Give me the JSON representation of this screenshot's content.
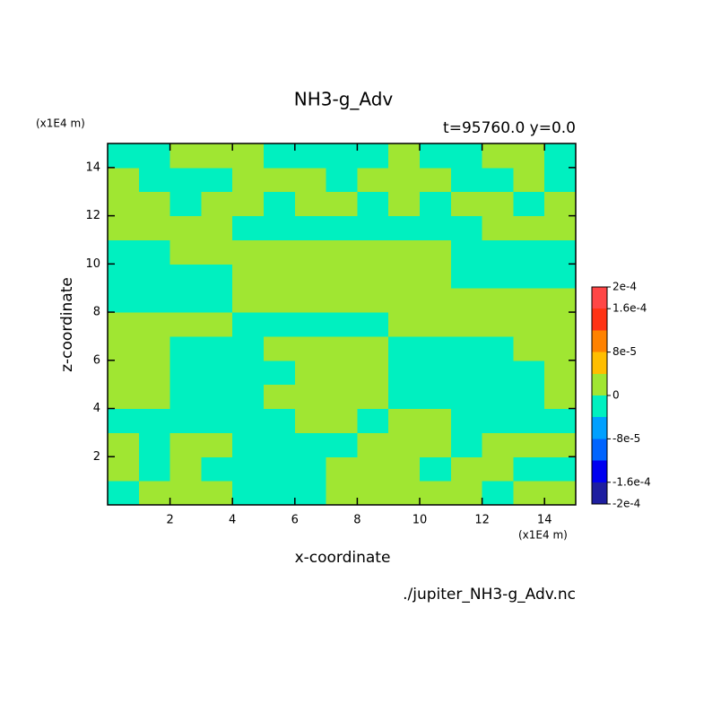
{
  "chart_data": {
    "type": "contour",
    "title": "NH3-g_Adv",
    "subtitle": "t=95760.0 y=0.0",
    "xlabel": "x-coordinate",
    "ylabel": "z-coordinate",
    "xunit": "(x1E4 m)",
    "yunit": "(x1E4 m)",
    "footer": "./jupiter_NH3-g_Adv.nc",
    "xlim": [
      0,
      15
    ],
    "ylim": [
      0,
      15
    ],
    "xticks": [
      2,
      4,
      6,
      8,
      10,
      12,
      14
    ],
    "yticks": [
      2,
      4,
      6,
      8,
      10,
      12,
      14
    ],
    "x": [
      0.5,
      1.5,
      2.5,
      3.5,
      4.5,
      5.5,
      6.5,
      7.5,
      8.5,
      9.5,
      10.5,
      11.5,
      12.5,
      13.5,
      14.5
    ],
    "y": [
      0.5,
      1.5,
      2.5,
      3.5,
      4.5,
      5.5,
      6.5,
      7.5,
      8.5,
      9.5,
      10.5,
      11.5,
      12.5,
      13.5,
      14.5
    ],
    "z": [
      [
        -2e-05,
        2e-05,
        2e-05,
        2e-05,
        -2e-05,
        -2e-05,
        -2e-05,
        2e-05,
        2e-05,
        2e-05,
        2e-05,
        2e-05,
        -2e-05,
        2e-05,
        2e-05
      ],
      [
        2e-05,
        -2e-05,
        2e-05,
        -2e-05,
        -2e-05,
        -2e-05,
        -2e-05,
        2e-05,
        2e-05,
        2e-05,
        -2e-05,
        2e-05,
        2e-05,
        -2e-05,
        -2e-05
      ],
      [
        2e-05,
        -2e-05,
        2e-05,
        2e-05,
        -2e-05,
        -2e-05,
        -2e-05,
        -2e-05,
        2e-05,
        2e-05,
        2e-05,
        -2e-05,
        2e-05,
        2e-05,
        2e-05
      ],
      [
        -2e-05,
        -2e-05,
        -2e-05,
        -2e-05,
        -2e-05,
        -2e-05,
        2e-05,
        2e-05,
        -2e-05,
        2e-05,
        2e-05,
        -2e-05,
        -2e-05,
        -2e-05,
        -2e-05
      ],
      [
        2e-05,
        2e-05,
        -2e-05,
        -2e-05,
        -2e-05,
        2e-05,
        2e-05,
        2e-05,
        2e-05,
        -2e-05,
        -2e-05,
        -2e-05,
        -2e-05,
        -2e-05,
        2e-05
      ],
      [
        2e-05,
        2e-05,
        -2e-05,
        -2e-05,
        -2e-05,
        -2e-05,
        2e-05,
        2e-05,
        2e-05,
        -2e-05,
        -2e-05,
        -2e-05,
        -2e-05,
        -2e-05,
        2e-05
      ],
      [
        2e-05,
        2e-05,
        -2e-05,
        -2e-05,
        -2e-05,
        2e-05,
        2e-05,
        2e-05,
        2e-05,
        -2e-05,
        -2e-05,
        -2e-05,
        -2e-05,
        2e-05,
        2e-05
      ],
      [
        2e-05,
        2e-05,
        2e-05,
        2e-05,
        -2e-05,
        -2e-05,
        -2e-05,
        -2e-05,
        -2e-05,
        2e-05,
        2e-05,
        2e-05,
        2e-05,
        2e-05,
        2e-05
      ],
      [
        -2e-05,
        -2e-05,
        -2e-05,
        -2e-05,
        2e-05,
        2e-05,
        2e-05,
        2e-05,
        2e-05,
        2e-05,
        2e-05,
        2e-05,
        2e-05,
        2e-05,
        2e-05
      ],
      [
        -2e-05,
        -2e-05,
        -2e-05,
        -2e-05,
        2e-05,
        2e-05,
        2e-05,
        2e-05,
        2e-05,
        2e-05,
        2e-05,
        -2e-05,
        -2e-05,
        -2e-05,
        -2e-05
      ],
      [
        -2e-05,
        -2e-05,
        2e-05,
        2e-05,
        2e-05,
        2e-05,
        2e-05,
        2e-05,
        2e-05,
        2e-05,
        2e-05,
        -2e-05,
        -2e-05,
        -2e-05,
        -2e-05
      ],
      [
        2e-05,
        2e-05,
        2e-05,
        2e-05,
        -2e-05,
        -2e-05,
        -2e-05,
        -2e-05,
        -2e-05,
        -2e-05,
        -2e-05,
        -2e-05,
        2e-05,
        2e-05,
        2e-05
      ],
      [
        2e-05,
        2e-05,
        -2e-05,
        2e-05,
        2e-05,
        -2e-05,
        2e-05,
        2e-05,
        -2e-05,
        2e-05,
        -2e-05,
        2e-05,
        2e-05,
        -2e-05,
        2e-05
      ],
      [
        2e-05,
        -2e-05,
        -2e-05,
        -2e-05,
        2e-05,
        2e-05,
        2e-05,
        -2e-05,
        2e-05,
        2e-05,
        2e-05,
        -2e-05,
        -2e-05,
        2e-05,
        -2e-05
      ],
      [
        -2e-05,
        -2e-05,
        2e-05,
        2e-05,
        2e-05,
        -2e-05,
        -2e-05,
        -2e-05,
        -2e-05,
        2e-05,
        -2e-05,
        -2e-05,
        2e-05,
        2e-05,
        -2e-05
      ]
    ],
    "levels": [
      -0.0002,
      -0.00016,
      -0.00012,
      -8e-05,
      -4e-05,
      0,
      4e-05,
      8e-05,
      0.00012,
      0.00016,
      0.0002
    ],
    "colors": [
      "#1e1ea0",
      "#0000f0",
      "#0064ff",
      "#00a0ff",
      "#00f0c0",
      "#a0e632",
      "#ffbe00",
      "#ff8200",
      "#ff3214",
      "#ff4646"
    ],
    "colorbar_ticks": [
      {
        "value": 0.0002,
        "label": "2e-4"
      },
      {
        "value": 0.00016,
        "label": "1.6e-4"
      },
      {
        "value": 8e-05,
        "label": "8e-5"
      },
      0,
      {
        "value": -8e-05,
        "label": "-8e-5"
      },
      {
        "value": -0.00016,
        "label": "-1.6e-4"
      },
      {
        "value": -0.0002,
        "label": "-2e-4"
      }
    ]
  }
}
